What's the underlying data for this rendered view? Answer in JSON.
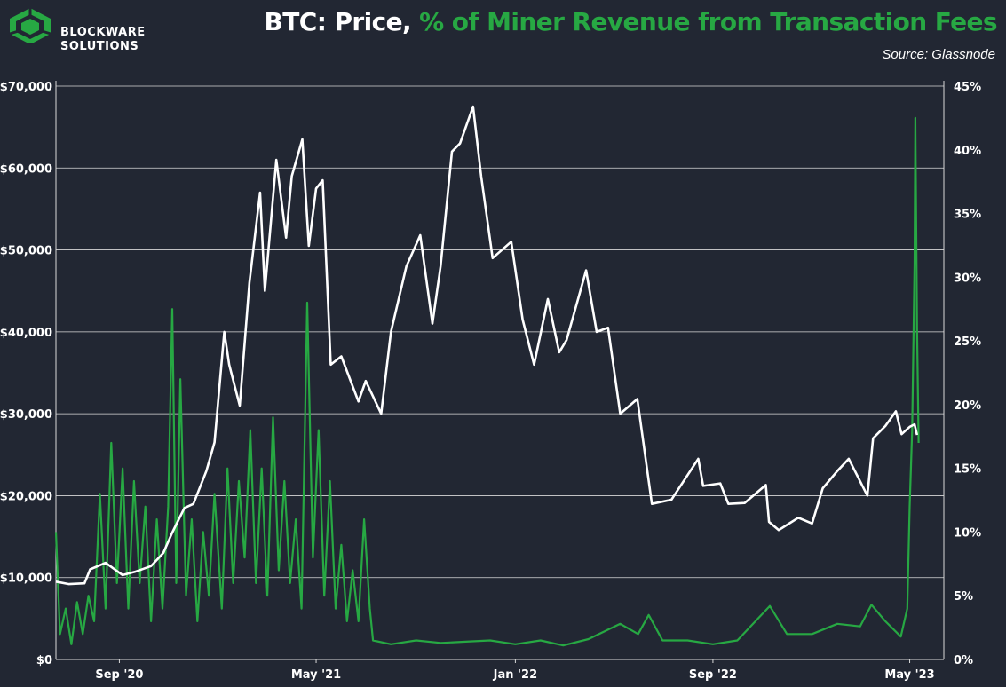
{
  "brand": {
    "line1": "BLOCKWARE",
    "line2": "SOLUTIONS",
    "logo_icon": "blockware-hex-logo-icon",
    "color": "#27a843"
  },
  "title": {
    "part1": "BTC: Price,",
    "part2": "% of Miner Revenue from Transaction Fees"
  },
  "source": "Source: Glassnode",
  "colors": {
    "background": "#222733",
    "price": "#ffffff",
    "fees": "#27a843",
    "grid": "#d9d9d9"
  },
  "chart_data": {
    "type": "line",
    "grid": "horizontal",
    "x_ticks": [
      {
        "label": "Sep '20",
        "date": "2020-09-01"
      },
      {
        "label": "May '21",
        "date": "2021-05-01"
      },
      {
        "label": "Jan '22",
        "date": "2022-01-01"
      },
      {
        "label": "Sep '22",
        "date": "2022-09-01"
      },
      {
        "label": "May '23",
        "date": "2023-05-01"
      }
    ],
    "x_range": [
      "2020-06-15",
      "2023-06-12"
    ],
    "y_left": {
      "min": 0,
      "max": 70000,
      "ticks": [
        "$0",
        "$10,000",
        "$20,000",
        "$30,000",
        "$40,000",
        "$50,000",
        "$60,000",
        "$70,000"
      ],
      "tick_values": [
        0,
        10000,
        20000,
        30000,
        40000,
        50000,
        60000,
        70000
      ]
    },
    "y_right": {
      "min": 0,
      "max": 45,
      "ticks": [
        "0%",
        "5%",
        "10%",
        "15%",
        "20%",
        "25%",
        "30%",
        "35%",
        "40%",
        "45%"
      ],
      "tick_values": [
        0,
        5,
        10,
        15,
        20,
        25,
        30,
        35,
        40,
        45
      ]
    },
    "series": [
      {
        "axis": "left",
        "color": "#ffffff",
        "points": [
          [
            "2020-06-15",
            9500
          ],
          [
            "2020-07-01",
            9200
          ],
          [
            "2020-07-20",
            9300
          ],
          [
            "2020-07-27",
            11000
          ],
          [
            "2020-08-15",
            11800
          ],
          [
            "2020-09-05",
            10300
          ],
          [
            "2020-09-20",
            10700
          ],
          [
            "2020-10-10",
            11400
          ],
          [
            "2020-10-25",
            13000
          ],
          [
            "2020-11-05",
            15500
          ],
          [
            "2020-11-20",
            18500
          ],
          [
            "2020-12-01",
            19000
          ],
          [
            "2020-12-17",
            23000
          ],
          [
            "2020-12-27",
            26500
          ],
          [
            "2021-01-08",
            40000
          ],
          [
            "2021-01-14",
            36000
          ],
          [
            "2021-01-27",
            31000
          ],
          [
            "2021-02-08",
            46000
          ],
          [
            "2021-02-21",
            57000
          ],
          [
            "2021-02-27",
            45000
          ],
          [
            "2021-03-13",
            61000
          ],
          [
            "2021-03-25",
            51500
          ],
          [
            "2021-04-01",
            59000
          ],
          [
            "2021-04-14",
            63500
          ],
          [
            "2021-04-22",
            50500
          ],
          [
            "2021-05-01",
            57500
          ],
          [
            "2021-05-09",
            58500
          ],
          [
            "2021-05-19",
            36000
          ],
          [
            "2021-06-01",
            37000
          ],
          [
            "2021-06-22",
            31500
          ],
          [
            "2021-07-01",
            34000
          ],
          [
            "2021-07-20",
            30000
          ],
          [
            "2021-08-01",
            40000
          ],
          [
            "2021-08-20",
            48000
          ],
          [
            "2021-09-06",
            51800
          ],
          [
            "2021-09-21",
            41000
          ],
          [
            "2021-10-01",
            48000
          ],
          [
            "2021-10-15",
            62000
          ],
          [
            "2021-10-25",
            63000
          ],
          [
            "2021-11-10",
            67500
          ],
          [
            "2021-11-20",
            59000
          ],
          [
            "2021-12-04",
            49000
          ],
          [
            "2021-12-27",
            51000
          ],
          [
            "2022-01-10",
            41500
          ],
          [
            "2022-01-24",
            36000
          ],
          [
            "2022-02-10",
            44000
          ],
          [
            "2022-02-24",
            37500
          ],
          [
            "2022-03-05",
            39000
          ],
          [
            "2022-03-29",
            47500
          ],
          [
            "2022-04-11",
            40000
          ],
          [
            "2022-04-25",
            40500
          ],
          [
            "2022-05-10",
            30000
          ],
          [
            "2022-05-31",
            31800
          ],
          [
            "2022-06-13",
            22500
          ],
          [
            "2022-06-18",
            19000
          ],
          [
            "2022-07-12",
            19500
          ],
          [
            "2022-08-14",
            24500
          ],
          [
            "2022-08-20",
            21200
          ],
          [
            "2022-09-10",
            21500
          ],
          [
            "2022-09-20",
            19000
          ],
          [
            "2022-10-10",
            19100
          ],
          [
            "2022-11-05",
            21300
          ],
          [
            "2022-11-09",
            16800
          ],
          [
            "2022-11-21",
            15800
          ],
          [
            "2022-12-15",
            17300
          ],
          [
            "2023-01-01",
            16600
          ],
          [
            "2023-01-14",
            20900
          ],
          [
            "2023-02-01",
            23000
          ],
          [
            "2023-02-15",
            24500
          ],
          [
            "2023-03-10",
            20000
          ],
          [
            "2023-03-17",
            27000
          ],
          [
            "2023-04-01",
            28500
          ],
          [
            "2023-04-14",
            30300
          ],
          [
            "2023-04-21",
            27500
          ],
          [
            "2023-05-01",
            28400
          ],
          [
            "2023-05-07",
            28700
          ],
          [
            "2023-05-10",
            27400
          ]
        ]
      },
      {
        "axis": "right",
        "color": "#27a843",
        "points": [
          [
            "2020-06-15",
            10
          ],
          [
            "2020-06-20",
            2
          ],
          [
            "2020-06-27",
            4
          ],
          [
            "2020-07-04",
            1.2
          ],
          [
            "2020-07-11",
            4.5
          ],
          [
            "2020-07-18",
            2
          ],
          [
            "2020-07-25",
            5
          ],
          [
            "2020-08-01",
            3
          ],
          [
            "2020-08-08",
            13
          ],
          [
            "2020-08-15",
            4
          ],
          [
            "2020-08-22",
            17
          ],
          [
            "2020-08-29",
            6
          ],
          [
            "2020-09-05",
            15
          ],
          [
            "2020-09-12",
            4
          ],
          [
            "2020-09-19",
            14
          ],
          [
            "2020-09-26",
            6
          ],
          [
            "2020-10-03",
            12
          ],
          [
            "2020-10-10",
            3
          ],
          [
            "2020-10-17",
            11
          ],
          [
            "2020-10-24",
            4
          ],
          [
            "2020-10-31",
            12
          ],
          [
            "2020-11-05",
            27.5
          ],
          [
            "2020-11-10",
            6
          ],
          [
            "2020-11-15",
            22
          ],
          [
            "2020-11-22",
            5
          ],
          [
            "2020-11-29",
            11
          ],
          [
            "2020-12-06",
            3
          ],
          [
            "2020-12-13",
            10
          ],
          [
            "2020-12-20",
            5
          ],
          [
            "2020-12-27",
            13
          ],
          [
            "2021-01-05",
            4
          ],
          [
            "2021-01-12",
            15
          ],
          [
            "2021-01-19",
            6
          ],
          [
            "2021-01-26",
            14
          ],
          [
            "2021-02-02",
            8
          ],
          [
            "2021-02-09",
            18
          ],
          [
            "2021-02-16",
            6
          ],
          [
            "2021-02-23",
            15
          ],
          [
            "2021-03-02",
            5
          ],
          [
            "2021-03-09",
            19
          ],
          [
            "2021-03-16",
            7
          ],
          [
            "2021-03-23",
            14
          ],
          [
            "2021-03-30",
            6
          ],
          [
            "2021-04-06",
            11
          ],
          [
            "2021-04-13",
            4
          ],
          [
            "2021-04-20",
            28
          ],
          [
            "2021-04-27",
            8
          ],
          [
            "2021-05-04",
            18
          ],
          [
            "2021-05-11",
            5
          ],
          [
            "2021-05-18",
            14
          ],
          [
            "2021-05-25",
            4
          ],
          [
            "2021-06-01",
            9
          ],
          [
            "2021-06-08",
            3
          ],
          [
            "2021-06-15",
            7
          ],
          [
            "2021-06-22",
            3
          ],
          [
            "2021-06-29",
            11
          ],
          [
            "2021-07-06",
            4
          ],
          [
            "2021-07-10",
            1.5
          ],
          [
            "2021-08-01",
            1.2
          ],
          [
            "2021-09-01",
            1.5
          ],
          [
            "2021-10-01",
            1.3
          ],
          [
            "2021-11-01",
            1.4
          ],
          [
            "2021-12-01",
            1.5
          ],
          [
            "2022-01-01",
            1.2
          ],
          [
            "2022-02-01",
            1.5
          ],
          [
            "2022-03-01",
            1.1
          ],
          [
            "2022-04-01",
            1.6
          ],
          [
            "2022-05-10",
            2.8
          ],
          [
            "2022-06-01",
            2.0
          ],
          [
            "2022-06-14",
            3.5
          ],
          [
            "2022-07-01",
            1.5
          ],
          [
            "2022-08-01",
            1.5
          ],
          [
            "2022-09-01",
            1.2
          ],
          [
            "2022-10-01",
            1.5
          ],
          [
            "2022-11-10",
            4.2
          ],
          [
            "2022-12-01",
            2.0
          ],
          [
            "2023-01-01",
            2.0
          ],
          [
            "2023-02-01",
            2.8
          ],
          [
            "2023-03-01",
            2.6
          ],
          [
            "2023-03-15",
            4.3
          ],
          [
            "2023-04-01",
            3.0
          ],
          [
            "2023-04-20",
            1.8
          ],
          [
            "2023-04-28",
            4.0
          ],
          [
            "2023-05-01",
            12
          ],
          [
            "2023-05-04",
            18
          ],
          [
            "2023-05-07",
            31
          ],
          [
            "2023-05-08",
            42.5
          ],
          [
            "2023-05-10",
            26
          ],
          [
            "2023-05-12",
            17
          ]
        ]
      }
    ]
  }
}
